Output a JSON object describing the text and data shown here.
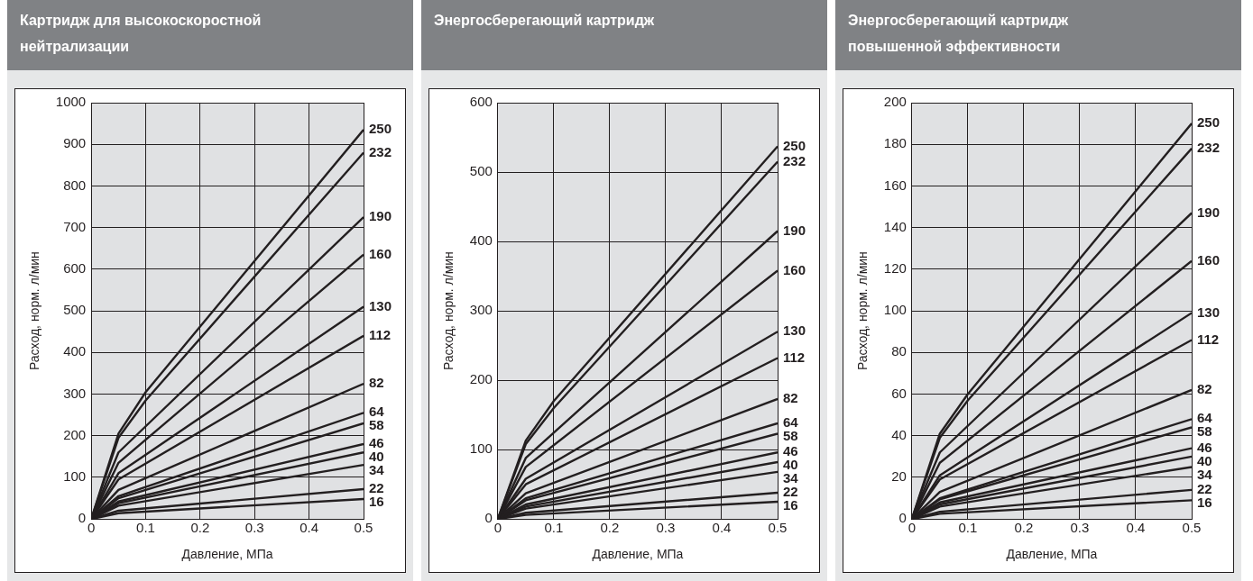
{
  "chart_data": [
    {
      "type": "line",
      "title": "Картридж для высокоскоростной нейтрализации",
      "xlabel": "Давление, МПа",
      "ylabel": "Расход, норм. л/мин",
      "xlim": [
        0,
        0.5
      ],
      "ylim": [
        0,
        1000
      ],
      "xticks": [
        0,
        0.1,
        0.2,
        0.3,
        0.4,
        0.5
      ],
      "yticks": [
        0,
        100,
        200,
        300,
        400,
        500,
        600,
        700,
        800,
        900,
        1000
      ],
      "grid": true,
      "series": [
        {
          "name": "250",
          "color": "#231f20",
          "x": [
            0,
            0.05,
            0.1,
            0.5
          ],
          "values": [
            0,
            205,
            305,
            935
          ]
        },
        {
          "name": "232",
          "color": "#231f20",
          "x": [
            0,
            0.05,
            0.1,
            0.5
          ],
          "values": [
            0,
            195,
            285,
            880
          ]
        },
        {
          "name": "190",
          "color": "#231f20",
          "x": [
            0,
            0.05,
            0.5
          ],
          "values": [
            0,
            160,
            725
          ]
        },
        {
          "name": "160",
          "color": "#231f20",
          "x": [
            0,
            0.05,
            0.5
          ],
          "values": [
            0,
            135,
            635
          ]
        },
        {
          "name": "130",
          "color": "#231f20",
          "x": [
            0,
            0.05,
            0.5
          ],
          "values": [
            0,
            110,
            510
          ]
        },
        {
          "name": "112",
          "color": "#231f20",
          "x": [
            0,
            0.05,
            0.5
          ],
          "values": [
            0,
            95,
            440
          ]
        },
        {
          "name": "82",
          "color": "#231f20",
          "x": [
            0,
            0.05,
            0.5
          ],
          "values": [
            0,
            70,
            325
          ]
        },
        {
          "name": "64",
          "color": "#231f20",
          "x": [
            0,
            0.05,
            0.5
          ],
          "values": [
            0,
            55,
            255
          ]
        },
        {
          "name": "58",
          "color": "#231f20",
          "x": [
            0,
            0.05,
            0.5
          ],
          "values": [
            0,
            50,
            230
          ]
        },
        {
          "name": "46",
          "color": "#231f20",
          "x": [
            0,
            0.05,
            0.5
          ],
          "values": [
            0,
            42,
            180
          ]
        },
        {
          "name": "40",
          "color": "#231f20",
          "x": [
            0,
            0.05,
            0.5
          ],
          "values": [
            0,
            38,
            160
          ]
        },
        {
          "name": "34",
          "color": "#231f20",
          "x": [
            0,
            0.05,
            0.5
          ],
          "values": [
            0,
            32,
            130
          ]
        },
        {
          "name": "22",
          "color": "#231f20",
          "x": [
            0,
            0.05,
            0.5
          ],
          "values": [
            0,
            20,
            72
          ]
        },
        {
          "name": "16",
          "color": "#231f20",
          "x": [
            0,
            0.05,
            0.5
          ],
          "values": [
            0,
            14,
            48
          ]
        }
      ]
    },
    {
      "type": "line",
      "title": "Энергосберегающий картридж",
      "xlabel": "Давление, МПа",
      "ylabel": "Расход, норм. л/мин",
      "xlim": [
        0,
        0.5
      ],
      "ylim": [
        0,
        600
      ],
      "xticks": [
        0,
        0.1,
        0.2,
        0.3,
        0.4,
        0.5
      ],
      "yticks": [
        0,
        100,
        200,
        300,
        400,
        500,
        600
      ],
      "grid": true,
      "series": [
        {
          "name": "250",
          "color": "#231f20",
          "x": [
            0,
            0.05,
            0.1,
            0.5
          ],
          "values": [
            0,
            113,
            170,
            537
          ]
        },
        {
          "name": "232",
          "color": "#231f20",
          "x": [
            0,
            0.05,
            0.1,
            0.5
          ],
          "values": [
            0,
            108,
            160,
            515
          ]
        },
        {
          "name": "190",
          "color": "#231f20",
          "x": [
            0,
            0.05,
            0.5
          ],
          "values": [
            0,
            88,
            415
          ]
        },
        {
          "name": "160",
          "color": "#231f20",
          "x": [
            0,
            0.05,
            0.5
          ],
          "values": [
            0,
            75,
            358
          ]
        },
        {
          "name": "130",
          "color": "#231f20",
          "x": [
            0,
            0.05,
            0.5
          ],
          "values": [
            0,
            58,
            270
          ]
        },
        {
          "name": "112",
          "color": "#231f20",
          "x": [
            0,
            0.05,
            0.5
          ],
          "values": [
            0,
            50,
            232
          ]
        },
        {
          "name": "82",
          "color": "#231f20",
          "x": [
            0,
            0.05,
            0.5
          ],
          "values": [
            0,
            37,
            173
          ]
        },
        {
          "name": "64",
          "color": "#231f20",
          "x": [
            0,
            0.05,
            0.5
          ],
          "values": [
            0,
            30,
            138
          ]
        },
        {
          "name": "58",
          "color": "#231f20",
          "x": [
            0,
            0.05,
            0.5
          ],
          "values": [
            0,
            27,
            123
          ]
        },
        {
          "name": "46",
          "color": "#231f20",
          "x": [
            0,
            0.05,
            0.5
          ],
          "values": [
            0,
            21,
            96
          ]
        },
        {
          "name": "40",
          "color": "#231f20",
          "x": [
            0,
            0.05,
            0.5
          ],
          "values": [
            0,
            18,
            82
          ]
        },
        {
          "name": "34",
          "color": "#231f20",
          "x": [
            0,
            0.05,
            0.5
          ],
          "values": [
            0,
            15,
            68
          ]
        },
        {
          "name": "22",
          "color": "#231f20",
          "x": [
            0,
            0.05,
            0.5
          ],
          "values": [
            0,
            9,
            38
          ]
        },
        {
          "name": "16",
          "color": "#231f20",
          "x": [
            0,
            0.05,
            0.5
          ],
          "values": [
            0,
            6,
            25
          ]
        }
      ]
    },
    {
      "type": "line",
      "title": "Энергосберегающий картридж повышенной эффективности",
      "xlabel": "Давление, МПа",
      "ylabel": "Расход, норм. л/мин",
      "xlim": [
        0,
        0.5
      ],
      "ylim": [
        0,
        200
      ],
      "xticks": [
        0,
        0.1,
        0.2,
        0.3,
        0.4,
        0.5
      ],
      "yticks": [
        0,
        20,
        40,
        60,
        80,
        100,
        120,
        140,
        160,
        180,
        200
      ],
      "grid": true,
      "series": [
        {
          "name": "250",
          "color": "#231f20",
          "x": [
            0,
            0.05,
            0.1,
            0.5
          ],
          "values": [
            0,
            41,
            60,
            190
          ]
        },
        {
          "name": "232",
          "color": "#231f20",
          "x": [
            0,
            0.05,
            0.1,
            0.5
          ],
          "values": [
            0,
            39,
            57,
            178
          ]
        },
        {
          "name": "190",
          "color": "#231f20",
          "x": [
            0,
            0.05,
            0.5
          ],
          "values": [
            0,
            32,
            147
          ]
        },
        {
          "name": "160",
          "color": "#231f20",
          "x": [
            0,
            0.05,
            0.5
          ],
          "values": [
            0,
            27,
            124
          ]
        },
        {
          "name": "130",
          "color": "#231f20",
          "x": [
            0,
            0.05,
            0.5
          ],
          "values": [
            0,
            21,
            99
          ]
        },
        {
          "name": "112",
          "color": "#231f20",
          "x": [
            0,
            0.05,
            0.5
          ],
          "values": [
            0,
            19,
            86
          ]
        },
        {
          "name": "82",
          "color": "#231f20",
          "x": [
            0,
            0.05,
            0.5
          ],
          "values": [
            0,
            13,
            62
          ]
        },
        {
          "name": "64",
          "color": "#231f20",
          "x": [
            0,
            0.05,
            0.5
          ],
          "values": [
            0,
            10,
            48
          ]
        },
        {
          "name": "58",
          "color": "#231f20",
          "x": [
            0,
            0.05,
            0.5
          ],
          "values": [
            0,
            9.5,
            44
          ]
        },
        {
          "name": "46",
          "color": "#231f20",
          "x": [
            0,
            0.05,
            0.5
          ],
          "values": [
            0,
            8,
            34
          ]
        },
        {
          "name": "40",
          "color": "#231f20",
          "x": [
            0,
            0.05,
            0.5
          ],
          "values": [
            0,
            7,
            30
          ]
        },
        {
          "name": "34",
          "color": "#231f20",
          "x": [
            0,
            0.05,
            0.5
          ],
          "values": [
            0,
            6,
            25
          ]
        },
        {
          "name": "22",
          "color": "#231f20",
          "x": [
            0,
            0.05,
            0.5
          ],
          "values": [
            0,
            3.5,
            14
          ]
        },
        {
          "name": "16",
          "color": "#231f20",
          "x": [
            0,
            0.05,
            0.5
          ],
          "values": [
            0,
            2.5,
            9
          ]
        }
      ]
    }
  ]
}
